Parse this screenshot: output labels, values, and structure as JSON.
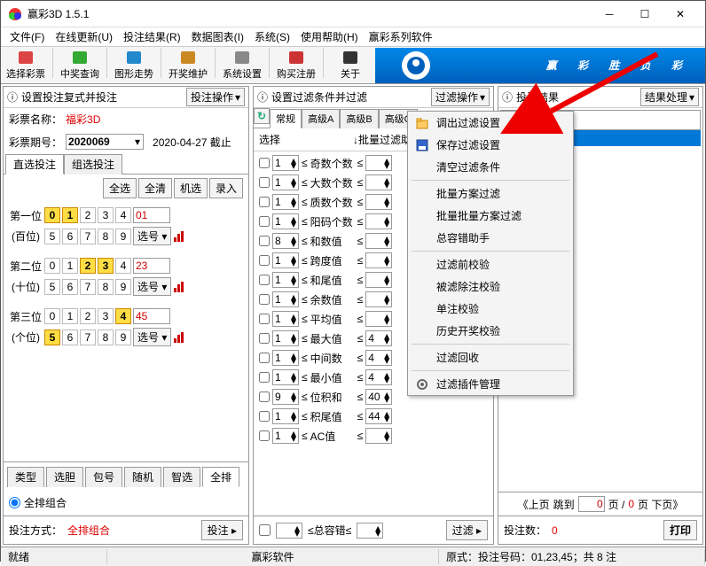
{
  "window": {
    "title": "赢彩3D 1.5.1"
  },
  "menu": [
    "文件(F)",
    "在线更新(U)",
    "投注结果(R)",
    "数据图表(I)",
    "系统(S)",
    "使用帮助(H)",
    "赢彩系列软件"
  ],
  "toolbar": [
    {
      "label": "选择彩票",
      "icon": "#d44"
    },
    {
      "label": "中奖查询",
      "icon": "#3a3"
    },
    {
      "label": "图形走势",
      "icon": "#28c"
    },
    {
      "label": "开奖维护",
      "icon": "#c82"
    },
    {
      "label": "系统设置",
      "icon": "#888"
    },
    {
      "label": "购买注册",
      "icon": "#c33"
    },
    {
      "label": "关于",
      "icon": "#333"
    }
  ],
  "banner": "赢 彩 胜 负 彩",
  "left": {
    "panel_title": "设置投注复式并投注",
    "op_btn": "投注操作",
    "name_label": "彩票名称：",
    "name_value": "福彩3D",
    "issue_label": "彩票期号：",
    "issue_value": "2020069",
    "issue_date": "2020-04-27 截止",
    "tabs": [
      "直选投注",
      "组选投注"
    ],
    "btns": [
      "全选",
      "全清",
      "机选",
      "录入"
    ],
    "positions": [
      {
        "label": "第一位",
        "sub": "(百位)",
        "hl": [
          0,
          1
        ],
        "value": "01"
      },
      {
        "label": "第二位",
        "sub": "(十位)",
        "hl": [
          2,
          3
        ],
        "value": "23"
      },
      {
        "label": "第三位",
        "sub": "(个位)",
        "hl": [
          4,
          5
        ],
        "value": "45"
      }
    ],
    "sel_btn": "选号",
    "type_btns": [
      "类型",
      "选胆",
      "包号",
      "随机",
      "智选",
      "全排"
    ],
    "radio": "全排组合",
    "footer_label": "投注方式：",
    "footer_value": "全排组合",
    "bet_btn": "投注"
  },
  "mid": {
    "panel_title": "设置过滤条件并过滤",
    "op_btn": "过滤操作",
    "tabs": [
      "常规",
      "高级A",
      "高级B",
      "高级C"
    ],
    "col_sel": "选择",
    "col_helper": "↓批量过滤助手",
    "filters": [
      {
        "lo": "1",
        "name": "奇数个数",
        "hi": ""
      },
      {
        "lo": "1",
        "name": "大数个数",
        "hi": ""
      },
      {
        "lo": "1",
        "name": "质数个数",
        "hi": ""
      },
      {
        "lo": "1",
        "name": "阳码个数",
        "hi": ""
      },
      {
        "lo": "8",
        "name": "和数值",
        "hi": ""
      },
      {
        "lo": "1",
        "name": "跨度值",
        "hi": ""
      },
      {
        "lo": "1",
        "name": "和尾值",
        "hi": ""
      },
      {
        "lo": "1",
        "name": "余数值",
        "hi": ""
      },
      {
        "lo": "1",
        "name": "平均值",
        "hi": ""
      },
      {
        "lo": "1",
        "name": "最大值",
        "hi": "4"
      },
      {
        "lo": "1",
        "name": "中间数",
        "hi": "4"
      },
      {
        "lo": "1",
        "name": "最小值",
        "hi": "4"
      },
      {
        "lo": "9",
        "name": "位积和",
        "hi": "40"
      },
      {
        "lo": "1",
        "name": "积尾值",
        "hi": "44"
      },
      {
        "lo": "1",
        "name": "AC值",
        "hi": ""
      }
    ],
    "err_label": "≤总容错≤",
    "filter_btn": "过滤"
  },
  "popup": {
    "items": [
      {
        "icon": "folder",
        "label": "调出过滤设置"
      },
      {
        "icon": "save",
        "label": "保存过滤设置"
      },
      {
        "icon": "",
        "label": "清空过滤条件"
      },
      {
        "sep": true
      },
      {
        "icon": "",
        "label": "批量方案过滤"
      },
      {
        "icon": "",
        "label": "批量批量方案过滤"
      },
      {
        "icon": "",
        "label": "总容错助手"
      },
      {
        "sep": true
      },
      {
        "icon": "",
        "label": "过滤前校验"
      },
      {
        "icon": "",
        "label": "被滤除注校验"
      },
      {
        "icon": "",
        "label": "单注校验"
      },
      {
        "icon": "",
        "label": "历史开奖校验"
      },
      {
        "sep": true
      },
      {
        "icon": "",
        "label": "过滤回收"
      },
      {
        "sep": true
      },
      {
        "icon": "gear",
        "label": "过滤插件管理"
      }
    ]
  },
  "right": {
    "panel_title": "投注结果",
    "op_btn": "结果处理",
    "header": "注结果",
    "pager": {
      "prev": "《上页",
      "jump": "跳到",
      "page": "0",
      "of_label": "页 /",
      "total": "0",
      "next": "页 下页》"
    },
    "bet_count_label": "投注数：",
    "bet_count": "0",
    "print": "打印"
  },
  "status": {
    "ready": "就绪",
    "app": "赢彩软件",
    "formula": "原式：投注号码：01,23,45；共 8 注"
  }
}
